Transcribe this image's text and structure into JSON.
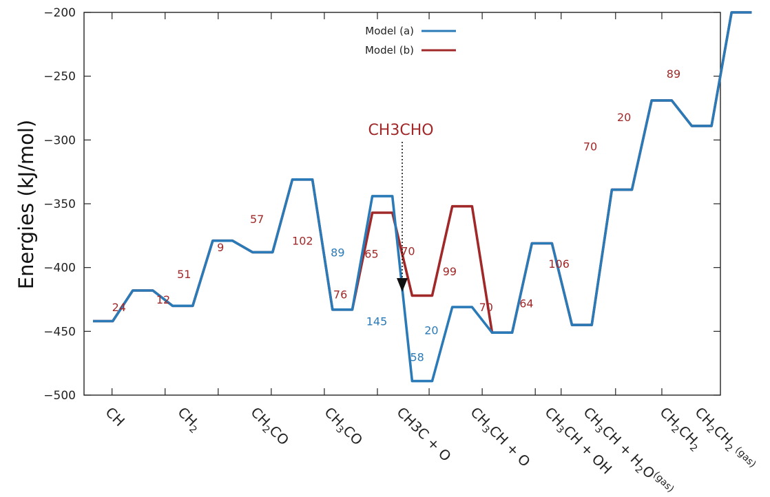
{
  "chart_data": {
    "type": "line",
    "ylabel": "Energies (kJ/mol)",
    "ylim": [
      -500,
      -200
    ],
    "yticks": [
      -500,
      -450,
      -400,
      -350,
      -300,
      -250,
      -200
    ],
    "categories": [
      {
        "id": "ch",
        "text": "CH",
        "sub": "",
        "tail": "",
        "color": "#222222"
      },
      {
        "id": "ch2",
        "text": "CH",
        "sub": "2",
        "tail": "",
        "color": "#222222"
      },
      {
        "id": "ch2co",
        "text": "CH",
        "sub": "2",
        "tail": "CO",
        "color": "#222222"
      },
      {
        "id": "ch3co",
        "text": "CH",
        "sub": "3",
        "tail": "CO",
        "color": "#222222"
      },
      {
        "id": "ch3c-o",
        "text": "CH3C + O",
        "sub": "",
        "tail": "",
        "color": "#2a7ab8"
      },
      {
        "id": "ch3ch-o",
        "text": "CH",
        "sub": "3",
        "tail": "CH + O",
        "color": "#222222"
      },
      {
        "id": "ch3ch-oh",
        "text": "CH",
        "sub": "3",
        "tail": "CH + OH",
        "color": "#222222"
      },
      {
        "id": "ch3ch-h2o",
        "text": "CH",
        "sub": "3",
        "tail": "CH + H",
        "sub2": "2",
        "tail2": "O",
        "sup": "(gas)",
        "color": "#222222"
      },
      {
        "id": "ch2ch2",
        "text": "CH",
        "sub": "2",
        "tail": "CH",
        "sub2": "2",
        "color": "#222222"
      },
      {
        "id": "ch2ch2-gas",
        "text": "CH",
        "sub": "2",
        "tail": "CH",
        "sub2": "2",
        "sup": " (gas)",
        "color": "#222222"
      }
    ],
    "series": [
      {
        "name": "Model (a)",
        "color": "#2a7ab8",
        "x": [
          0.0,
          0.66,
          1.33,
          2.0,
          2.66,
          3.33,
          4.0,
          4.66,
          5.33,
          6.0,
          6.66,
          7.33,
          8.0,
          8.66,
          9.33,
          10.0,
          10.66,
          11.33,
          12.0,
          12.66,
          13.33,
          14.0,
          14.66,
          15.33,
          16.0,
          16.66,
          17.33,
          18.0,
          18.66,
          19.33,
          20.0
        ],
        "y": [
          -442,
          -442,
          -418,
          -418,
          -430,
          -430,
          -379,
          -379,
          -388,
          -388,
          -331,
          -331,
          -433,
          -433,
          -344,
          -344,
          -489,
          -489,
          -431,
          -431,
          -451,
          -451,
          -381,
          -381,
          -445,
          -445,
          -339,
          -339,
          -269,
          -269,
          -289
        ]
      },
      {
        "name": "Model (b)",
        "color": "#a02828",
        "x": [
          0.0,
          0.66,
          1.33,
          2.0,
          2.66,
          3.33,
          4.0,
          4.66,
          5.33,
          6.0,
          6.66,
          7.33,
          8.0,
          8.66,
          9.33,
          10.0,
          10.66,
          11.33,
          12.0,
          12.66,
          13.33,
          14.0,
          14.66,
          15.33,
          16.0,
          16.66,
          17.33,
          18.0,
          18.66,
          19.33,
          20.0
        ],
        "y": [
          -442,
          -442,
          -418,
          -418,
          -430,
          -430,
          -379,
          -379,
          -388,
          -388,
          -331,
          -331,
          -433,
          -433,
          -357,
          -357,
          -422,
          -422,
          -352,
          -352,
          -451,
          -451,
          -381,
          -381,
          -445,
          -445,
          -339,
          -339,
          -269,
          -269,
          -289
        ]
      }
    ],
    "bar_labels": [
      {
        "text": "24",
        "color": "#a02828",
        "x": 1.0,
        "y": -431
      },
      {
        "text": "12",
        "color": "#a02828",
        "x": 2.7,
        "y": -425
      },
      {
        "text": "51",
        "color": "#a02828",
        "x": 3.5,
        "y": -405
      },
      {
        "text": "9",
        "color": "#a02828",
        "x": 4.9,
        "y": -384
      },
      {
        "text": "57",
        "color": "#a02828",
        "x": 6.3,
        "y": -362
      },
      {
        "text": "102",
        "color": "#a02828",
        "x": 8.05,
        "y": -379
      },
      {
        "text": "89",
        "color": "#2a7ab8",
        "x": 9.4,
        "y": -388
      },
      {
        "text": "76",
        "color": "#a02828",
        "x": 9.5,
        "y": -421
      },
      {
        "text": "65",
        "color": "#a02828",
        "x": 10.7,
        "y": -389
      },
      {
        "text": "145",
        "color": "#2a7ab8",
        "x": 10.9,
        "y": -442
      },
      {
        "text": "70",
        "color": "#a02828",
        "x": 12.1,
        "y": -387
      },
      {
        "text": "58",
        "color": "#2a7ab8",
        "x": 12.45,
        "y": -470
      },
      {
        "text": "20",
        "color": "#2a7ab8",
        "x": 13.0,
        "y": -449
      },
      {
        "text": "99",
        "color": "#a02828",
        "x": 13.7,
        "y": -403
      },
      {
        "text": "70",
        "color": "#a02828",
        "x": 15.1,
        "y": -431
      },
      {
        "text": "64",
        "color": "#a02828",
        "x": 16.65,
        "y": -428
      },
      {
        "text": "106",
        "color": "#a02828",
        "x": 17.9,
        "y": -397
      },
      {
        "text": "70",
        "color": "#a02828",
        "x": 19.1,
        "y": -305
      },
      {
        "text": "20",
        "color": "#a02828",
        "x": 20.4,
        "y": -282
      },
      {
        "text": "89",
        "color": "#a02828",
        "x": 22.3,
        "y": -248
      }
    ],
    "tail_extension": {
      "x": [
        20.0,
        20.66,
        21.33,
        22.0
      ],
      "y": [
        -289,
        -289,
        -200,
        -200
      ]
    },
    "annotation": {
      "text": "CH3CHO",
      "color": "#a02828"
    },
    "legend_position": "top-center"
  }
}
